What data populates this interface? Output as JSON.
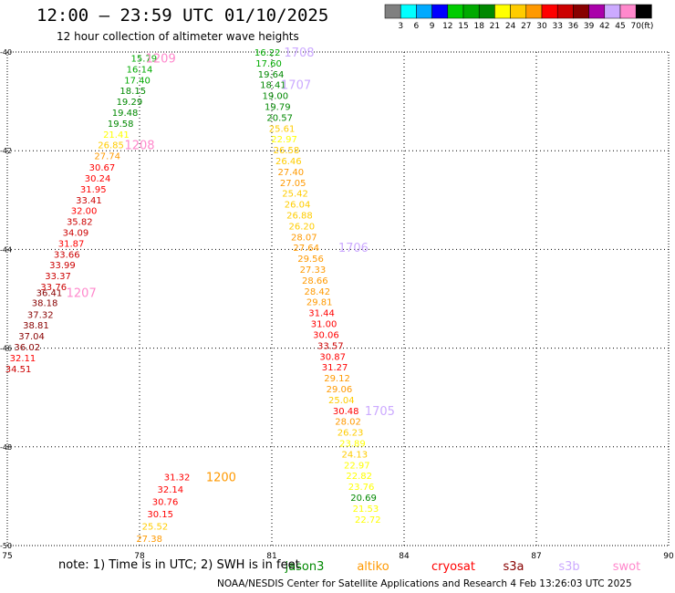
{
  "header": {
    "title": "12:00 – 23:59 UTC 01/10/2025",
    "subtitle": "12 hour collection of altimeter wave heights"
  },
  "colorbar": {
    "unit": "(ft)",
    "labels": [
      "3",
      "6",
      "9",
      "12",
      "15",
      "18",
      "21",
      "24",
      "27",
      "30",
      "33",
      "36",
      "39",
      "42",
      "45",
      "70"
    ],
    "colors": [
      "#808080",
      "#00ffff",
      "#00aaff",
      "#0000ff",
      "#00cc00",
      "#00aa00",
      "#008800",
      "#ffff00",
      "#ffcc00",
      "#ff9900",
      "#ff0000",
      "#cc0000",
      "#880000",
      "#aa00aa",
      "#ccaaff",
      "#ff88cc",
      "#000000"
    ]
  },
  "footer": {
    "note": "note:  1) Time is in UTC; 2) SWH is in feet",
    "credit": "NOAA/NESDIS Center for Satellite Applications and Research      4 Feb 13:26:03 UTC 2025",
    "satellites": [
      {
        "name": "jason3",
        "color": "#008800"
      },
      {
        "name": "altiko",
        "color": "#ff9900"
      },
      {
        "name": "cryosat",
        "color": "#ff0000"
      },
      {
        "name": "s3a",
        "color": "#880000"
      },
      {
        "name": "s3b",
        "color": "#ccaaff"
      },
      {
        "name": "swot",
        "color": "#ff88cc"
      }
    ]
  },
  "chart_data": {
    "type": "scatter",
    "xlim": [
      75,
      90
    ],
    "ylim": [
      -50,
      -40
    ],
    "x_ticks": [
      "75",
      "78",
      "81",
      "84",
      "87",
      "90"
    ],
    "y_ticks": [
      "-40",
      "-42",
      "-44",
      "-46",
      "-48",
      "-50"
    ],
    "grid": true,
    "series": [
      {
        "name": "track_west",
        "points": [
          {
            "lon": 78.1,
            "lat": -40.12,
            "swh": "15.79"
          },
          {
            "lon": 78.0,
            "lat": -40.34,
            "swh": "16.14"
          },
          {
            "lon": 77.95,
            "lat": -40.56,
            "swh": "17.40"
          },
          {
            "lon": 77.85,
            "lat": -40.78,
            "swh": "18.15"
          },
          {
            "lon": 77.77,
            "lat": -41.0,
            "swh": "19.29"
          },
          {
            "lon": 77.67,
            "lat": -41.22,
            "swh": "19.48"
          },
          {
            "lon": 77.57,
            "lat": -41.44,
            "swh": "19.58"
          },
          {
            "lon": 77.47,
            "lat": -41.66,
            "swh": "21.41"
          },
          {
            "lon": 77.35,
            "lat": -41.88,
            "swh": "26.85"
          },
          {
            "lon": 77.27,
            "lat": -42.1,
            "swh": "27.74"
          },
          {
            "lon": 77.15,
            "lat": -42.33,
            "swh": "30.67"
          },
          {
            "lon": 77.05,
            "lat": -42.55,
            "swh": "30.24"
          },
          {
            "lon": 76.95,
            "lat": -42.77,
            "swh": "31.95"
          },
          {
            "lon": 76.85,
            "lat": -42.99,
            "swh": "33.41"
          },
          {
            "lon": 76.74,
            "lat": -43.21,
            "swh": "32.00"
          },
          {
            "lon": 76.64,
            "lat": -43.43,
            "swh": "35.82"
          },
          {
            "lon": 76.55,
            "lat": -43.65,
            "swh": "34.09"
          },
          {
            "lon": 76.45,
            "lat": -43.87,
            "swh": "31.87"
          },
          {
            "lon": 76.35,
            "lat": -44.09,
            "swh": "33.66"
          },
          {
            "lon": 76.25,
            "lat": -44.31,
            "swh": "33.99"
          },
          {
            "lon": 76.15,
            "lat": -44.53,
            "swh": "33.37"
          },
          {
            "lon": 76.05,
            "lat": -44.75,
            "swh": "33.76"
          },
          {
            "lon": 75.95,
            "lat": -44.87,
            "swh": "36.41"
          },
          {
            "lon": 75.85,
            "lat": -45.07,
            "swh": "38.18"
          },
          {
            "lon": 75.75,
            "lat": -45.31,
            "swh": "37.32"
          },
          {
            "lon": 75.65,
            "lat": -45.53,
            "swh": "38.81"
          },
          {
            "lon": 75.55,
            "lat": -45.75,
            "swh": "37.04"
          },
          {
            "lon": 75.45,
            "lat": -45.97,
            "swh": "36.02"
          },
          {
            "lon": 75.35,
            "lat": -46.19,
            "swh": "32.11"
          },
          {
            "lon": 75.25,
            "lat": -46.41,
            "swh": "34.51"
          }
        ]
      },
      {
        "name": "track_southwest",
        "points": [
          {
            "lon": 78.85,
            "lat": -48.6,
            "swh": "31.32"
          },
          {
            "lon": 78.7,
            "lat": -48.85,
            "swh": "32.14"
          },
          {
            "lon": 78.58,
            "lat": -49.1,
            "swh": "30.76"
          },
          {
            "lon": 78.47,
            "lat": -49.35,
            "swh": "30.15"
          },
          {
            "lon": 78.35,
            "lat": -49.6,
            "swh": "25.52"
          },
          {
            "lon": 78.22,
            "lat": -49.85,
            "swh": "27.38"
          }
        ]
      },
      {
        "name": "track_east",
        "points": [
          {
            "lon": 80.9,
            "lat": -40.0,
            "swh": "16.22"
          },
          {
            "lon": 80.93,
            "lat": -40.22,
            "swh": "17.60"
          },
          {
            "lon": 80.98,
            "lat": -40.44,
            "swh": "19.64"
          },
          {
            "lon": 81.03,
            "lat": -40.66,
            "swh": "18.41"
          },
          {
            "lon": 81.08,
            "lat": -40.88,
            "swh": "19.00"
          },
          {
            "lon": 81.13,
            "lat": -41.1,
            "swh": "19.79"
          },
          {
            "lon": 81.18,
            "lat": -41.32,
            "swh": "20.57"
          },
          {
            "lon": 81.23,
            "lat": -41.54,
            "swh": "25.61"
          },
          {
            "lon": 81.28,
            "lat": -41.76,
            "swh": "22.97"
          },
          {
            "lon": 81.33,
            "lat": -41.98,
            "swh": "26.58"
          },
          {
            "lon": 81.38,
            "lat": -42.2,
            "swh": "26.46"
          },
          {
            "lon": 81.43,
            "lat": -42.42,
            "swh": "27.40"
          },
          {
            "lon": 81.48,
            "lat": -42.64,
            "swh": "27.05"
          },
          {
            "lon": 81.53,
            "lat": -42.86,
            "swh": "25.42"
          },
          {
            "lon": 81.58,
            "lat": -43.08,
            "swh": "26.04"
          },
          {
            "lon": 81.63,
            "lat": -43.3,
            "swh": "26.88"
          },
          {
            "lon": 81.68,
            "lat": -43.52,
            "swh": "26.20"
          },
          {
            "lon": 81.73,
            "lat": -43.74,
            "swh": "28.07"
          },
          {
            "lon": 81.78,
            "lat": -43.96,
            "swh": "27.64"
          },
          {
            "lon": 81.88,
            "lat": -44.18,
            "swh": "29.56"
          },
          {
            "lon": 81.93,
            "lat": -44.4,
            "swh": "27.33"
          },
          {
            "lon": 81.98,
            "lat": -44.62,
            "swh": "28.66"
          },
          {
            "lon": 82.03,
            "lat": -44.84,
            "swh": "28.42"
          },
          {
            "lon": 82.08,
            "lat": -45.06,
            "swh": "29.81"
          },
          {
            "lon": 82.13,
            "lat": -45.28,
            "swh": "31.44"
          },
          {
            "lon": 82.18,
            "lat": -45.5,
            "swh": "31.00"
          },
          {
            "lon": 82.23,
            "lat": -45.72,
            "swh": "30.06"
          },
          {
            "lon": 82.33,
            "lat": -45.94,
            "swh": "33.57"
          },
          {
            "lon": 82.38,
            "lat": -46.16,
            "swh": "30.87"
          },
          {
            "lon": 82.43,
            "lat": -46.38,
            "swh": "31.27"
          },
          {
            "lon": 82.48,
            "lat": -46.6,
            "swh": "29.12"
          },
          {
            "lon": 82.53,
            "lat": -46.82,
            "swh": "29.06"
          },
          {
            "lon": 82.58,
            "lat": -47.04,
            "swh": "25.04"
          },
          {
            "lon": 82.68,
            "lat": -47.26,
            "swh": "30.48"
          },
          {
            "lon": 82.73,
            "lat": -47.48,
            "swh": "28.02"
          },
          {
            "lon": 82.78,
            "lat": -47.7,
            "swh": "26.23"
          },
          {
            "lon": 82.83,
            "lat": -47.92,
            "swh": "23.89"
          },
          {
            "lon": 82.88,
            "lat": -48.14,
            "swh": "24.13"
          },
          {
            "lon": 82.93,
            "lat": -48.36,
            "swh": "22.97"
          },
          {
            "lon": 82.98,
            "lat": -48.58,
            "swh": "22.82"
          },
          {
            "lon": 83.03,
            "lat": -48.8,
            "swh": "23.76"
          },
          {
            "lon": 83.08,
            "lat": -49.02,
            "swh": "20.69"
          },
          {
            "lon": 83.13,
            "lat": -49.24,
            "swh": "21.53"
          },
          {
            "lon": 83.18,
            "lat": -49.46,
            "swh": "22.72"
          }
        ]
      }
    ],
    "time_labels": [
      {
        "text": "1209",
        "lon": 78.48,
        "lat": -40.12,
        "color": "#ff88cc"
      },
      {
        "text": "1208",
        "lon": 78.0,
        "lat": -41.88,
        "color": "#ff88cc"
      },
      {
        "text": "1207",
        "lon": 76.68,
        "lat": -44.87,
        "color": "#ff88cc"
      },
      {
        "text": "1200",
        "lon": 79.85,
        "lat": -48.6,
        "color": "#ff9900"
      },
      {
        "text": "1708",
        "lon": 81.62,
        "lat": -40.0,
        "color": "#ccaaff"
      },
      {
        "text": "1707",
        "lon": 81.55,
        "lat": -40.66,
        "color": "#ccaaff"
      },
      {
        "text": "1706",
        "lon": 82.85,
        "lat": -43.96,
        "color": "#ccaaff"
      },
      {
        "text": "1705",
        "lon": 83.45,
        "lat": -47.26,
        "color": "#ccaaff"
      }
    ]
  }
}
